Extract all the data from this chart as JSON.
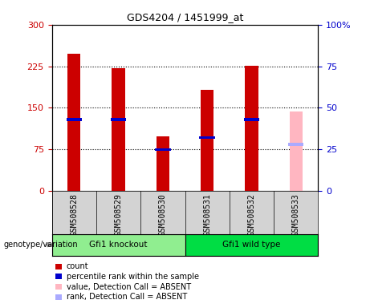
{
  "title": "GDS4204 / 1451999_at",
  "samples": [
    "GSM508528",
    "GSM508529",
    "GSM508530",
    "GSM508531",
    "GSM508532",
    "GSM508533"
  ],
  "count_values": [
    247,
    222,
    98,
    183,
    226,
    null
  ],
  "rank_values": [
    43,
    43,
    25,
    32,
    43,
    null
  ],
  "absent_value": 144,
  "absent_rank": 28,
  "ylim_left": [
    0,
    300
  ],
  "ylim_right": [
    0,
    100
  ],
  "yticks_left": [
    0,
    75,
    150,
    225,
    300
  ],
  "yticks_right": [
    0,
    25,
    50,
    75,
    100
  ],
  "left_color": "#cc0000",
  "right_color": "#0000cc",
  "absent_bar_color": "#ffb6c1",
  "absent_rank_color": "#aaaaff",
  "bg_color": "#d3d3d3",
  "plot_bg": "#ffffff",
  "bar_width": 0.3,
  "rank_bar_width": 0.35,
  "rank_bar_height": 5,
  "group1_label": "Gfi1 knockout",
  "group2_label": "Gfi1 wild type",
  "group1_color": "#90ee90",
  "group2_color": "#00dd44",
  "genotype_label": "genotype/variation",
  "legend_items": [
    {
      "label": "count",
      "color": "#cc0000"
    },
    {
      "label": "percentile rank within the sample",
      "color": "#0000cc"
    },
    {
      "label": "value, Detection Call = ABSENT",
      "color": "#ffb6c1"
    },
    {
      "label": "rank, Detection Call = ABSENT",
      "color": "#aaaaff"
    }
  ],
  "title_fontsize": 9,
  "tick_fontsize": 8,
  "label_fontsize": 7,
  "legend_fontsize": 7
}
